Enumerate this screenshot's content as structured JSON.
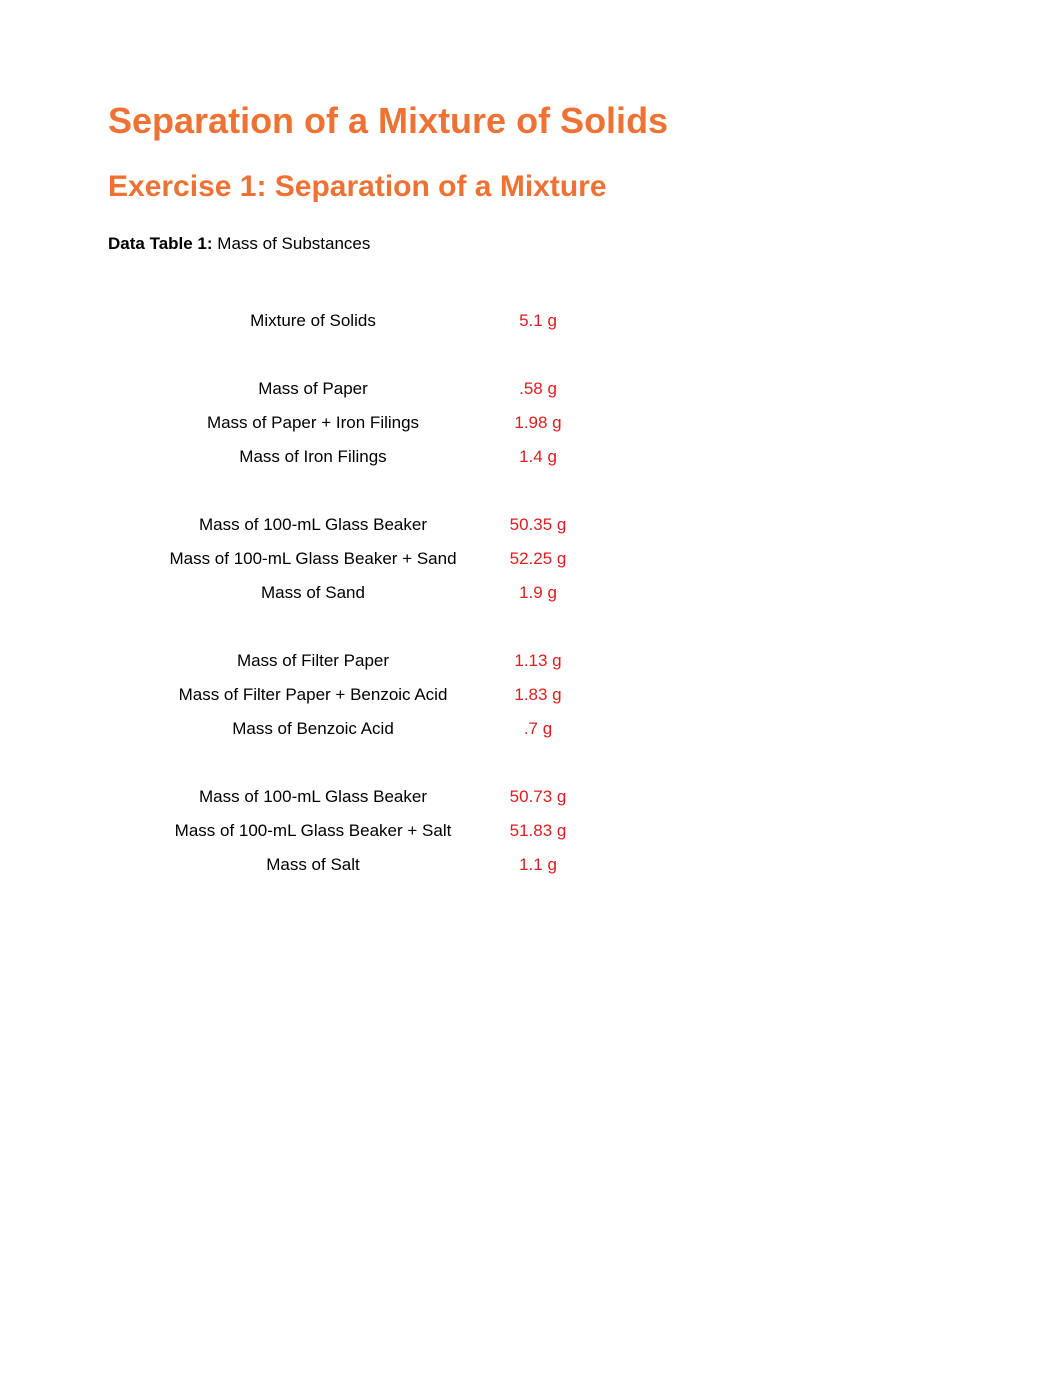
{
  "title": {
    "main": "Separation of a Mixture of Solids",
    "sub": "Exercise 1: Separation of a Mixture"
  },
  "table_caption": {
    "bold": "Data Table 1:",
    "normal": " Mass of Substances"
  },
  "colors": {
    "heading": "#ed7233",
    "value": "#de1d1d",
    "text": "#000000",
    "background": "#ffffff"
  },
  "groups": [
    {
      "rows": [
        {
          "label": "Mixture of Solids",
          "value": "5.1 g"
        }
      ]
    },
    {
      "rows": [
        {
          "label": "Mass of Paper",
          "value": ".58 g"
        },
        {
          "label": "Mass of Paper + Iron Filings",
          "value": "1.98 g"
        },
        {
          "label": "Mass of Iron Filings",
          "value": "1.4 g"
        }
      ]
    },
    {
      "rows": [
        {
          "label": "Mass of 100-mL Glass Beaker",
          "value": "50.35 g"
        },
        {
          "label": "Mass of 100-mL Glass Beaker + Sand",
          "value": "52.25 g"
        },
        {
          "label": "Mass of Sand",
          "value": "1.9 g"
        }
      ]
    },
    {
      "rows": [
        {
          "label": "Mass of Filter Paper",
          "value": "1.13 g"
        },
        {
          "label": "Mass of Filter Paper + Benzoic Acid",
          "value": "1.83 g"
        },
        {
          "label": "Mass of Benzoic Acid",
          "value": ".7 g"
        }
      ]
    },
    {
      "rows": [
        {
          "label": "Mass of 100-mL Glass Beaker",
          "value": "50.73 g"
        },
        {
          "label": "Mass of 100-mL Glass Beaker + Salt",
          "value": "51.83 g"
        },
        {
          "label": "Mass of Salt",
          "value": "1.1 g"
        }
      ]
    }
  ]
}
